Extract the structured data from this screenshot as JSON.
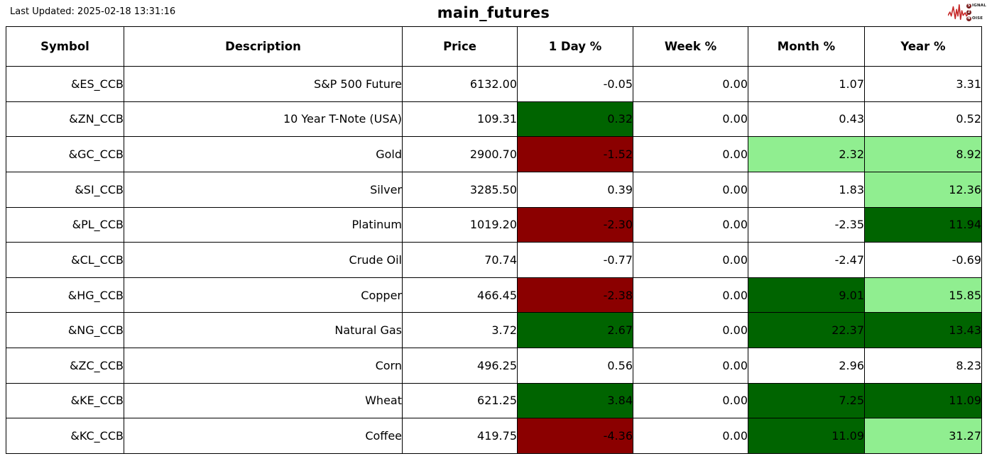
{
  "header": {
    "last_updated": "Last Updated: 2025-02-18 13:31:16",
    "title": "main_futures",
    "logo": {
      "rows": [
        {
          "badge": "S",
          "word": "IGNAL"
        },
        {
          "badge": "2",
          "word": ""
        },
        {
          "badge": "N",
          "word": "OISE"
        }
      ],
      "wave_color": "#c62828"
    }
  },
  "table": {
    "columns": [
      "Symbol",
      "Description",
      "Price",
      "1 Day %",
      "Week %",
      "Month %",
      "Year %"
    ],
    "colors": {
      "sg": "#006400",
      "lg": "#90EE90",
      "sr": "#8B0000",
      "none": "#FFFFFF"
    },
    "rows": [
      {
        "symbol": "&ES_CCB",
        "description": "S&P 500 Future",
        "price": "6132.00",
        "changes": [
          {
            "v": "-0.05",
            "bg": "none"
          },
          {
            "v": "0.00",
            "bg": "none"
          },
          {
            "v": "1.07",
            "bg": "none"
          },
          {
            "v": "3.31",
            "bg": "none"
          }
        ]
      },
      {
        "symbol": "&ZN_CCB",
        "description": "10 Year T-Note (USA)",
        "price": "109.31",
        "changes": [
          {
            "v": "0.32",
            "bg": "sg"
          },
          {
            "v": "0.00",
            "bg": "none"
          },
          {
            "v": "0.43",
            "bg": "none"
          },
          {
            "v": "0.52",
            "bg": "none"
          }
        ]
      },
      {
        "symbol": "&GC_CCB",
        "description": "Gold",
        "price": "2900.70",
        "changes": [
          {
            "v": "-1.52",
            "bg": "sr"
          },
          {
            "v": "0.00",
            "bg": "none"
          },
          {
            "v": "2.32",
            "bg": "lg"
          },
          {
            "v": "8.92",
            "bg": "lg"
          }
        ]
      },
      {
        "symbol": "&SI_CCB",
        "description": "Silver",
        "price": "3285.50",
        "changes": [
          {
            "v": "0.39",
            "bg": "none"
          },
          {
            "v": "0.00",
            "bg": "none"
          },
          {
            "v": "1.83",
            "bg": "none"
          },
          {
            "v": "12.36",
            "bg": "lg"
          }
        ]
      },
      {
        "symbol": "&PL_CCB",
        "description": "Platinum",
        "price": "1019.20",
        "changes": [
          {
            "v": "-2.30",
            "bg": "sr"
          },
          {
            "v": "0.00",
            "bg": "none"
          },
          {
            "v": "-2.35",
            "bg": "none"
          },
          {
            "v": "11.94",
            "bg": "sg"
          }
        ]
      },
      {
        "symbol": "&CL_CCB",
        "description": "Crude Oil",
        "price": "70.74",
        "changes": [
          {
            "v": "-0.77",
            "bg": "none"
          },
          {
            "v": "0.00",
            "bg": "none"
          },
          {
            "v": "-2.47",
            "bg": "none"
          },
          {
            "v": "-0.69",
            "bg": "none"
          }
        ]
      },
      {
        "symbol": "&HG_CCB",
        "description": "Copper",
        "price": "466.45",
        "changes": [
          {
            "v": "-2.38",
            "bg": "sr"
          },
          {
            "v": "0.00",
            "bg": "none"
          },
          {
            "v": "9.01",
            "bg": "sg"
          },
          {
            "v": "15.85",
            "bg": "lg"
          }
        ]
      },
      {
        "symbol": "&NG_CCB",
        "description": "Natural Gas",
        "price": "3.72",
        "changes": [
          {
            "v": "2.67",
            "bg": "sg"
          },
          {
            "v": "0.00",
            "bg": "none"
          },
          {
            "v": "22.37",
            "bg": "sg"
          },
          {
            "v": "13.43",
            "bg": "sg"
          }
        ]
      },
      {
        "symbol": "&ZC_CCB",
        "description": "Corn",
        "price": "496.25",
        "changes": [
          {
            "v": "0.56",
            "bg": "none"
          },
          {
            "v": "0.00",
            "bg": "none"
          },
          {
            "v": "2.96",
            "bg": "none"
          },
          {
            "v": "8.23",
            "bg": "none"
          }
        ]
      },
      {
        "symbol": "&KE_CCB",
        "description": "Wheat",
        "price": "621.25",
        "changes": [
          {
            "v": "3.84",
            "bg": "sg"
          },
          {
            "v": "0.00",
            "bg": "none"
          },
          {
            "v": "7.25",
            "bg": "sg"
          },
          {
            "v": "11.09",
            "bg": "sg"
          }
        ]
      },
      {
        "symbol": "&KC_CCB",
        "description": "Coffee",
        "price": "419.75",
        "changes": [
          {
            "v": "-4.36",
            "bg": "sr"
          },
          {
            "v": "0.00",
            "bg": "none"
          },
          {
            "v": "11.09",
            "bg": "sg"
          },
          {
            "v": "31.27",
            "bg": "lg"
          }
        ]
      }
    ]
  }
}
